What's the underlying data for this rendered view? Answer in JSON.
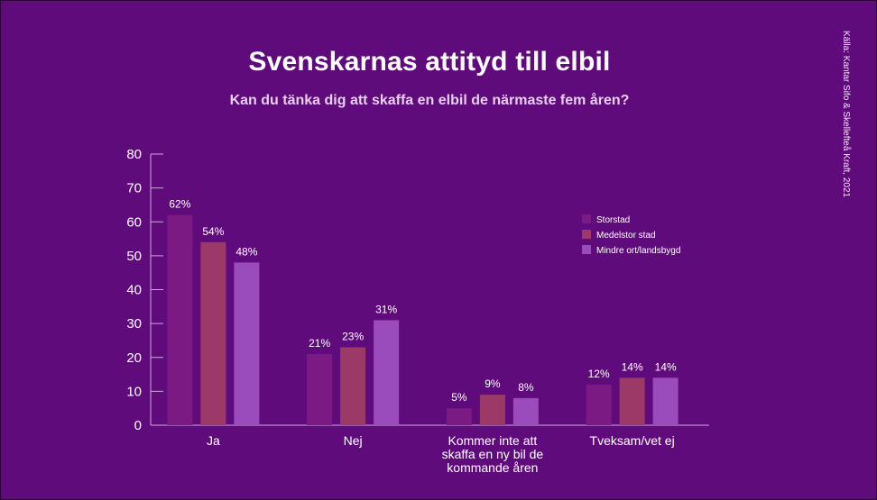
{
  "header": {
    "title": "Svenskarnas attityd till elbil",
    "subtitle": "Kan du tänka dig att skaffa en elbil de närmaste fem åren?",
    "source": "Källa: Kantar Sifo & Skellefteå Kraft, 2021"
  },
  "chart_data": {
    "type": "bar",
    "title": "Svenskarnas attityd till elbil",
    "subtitle": "Kan du tänka dig att skaffa en elbil de närmaste fem åren?",
    "categories": [
      [
        "Ja"
      ],
      [
        "Nej"
      ],
      [
        "Kommer inte att",
        "skaffa en ny bil de",
        "kommande åren"
      ],
      [
        "Tveksam/vet ej"
      ]
    ],
    "series": [
      {
        "name": "Storstad",
        "values": [
          62,
          21,
          5,
          12
        ],
        "labels": [
          "62%",
          "21%",
          "5%",
          "12%"
        ],
        "color": "#7b1a82"
      },
      {
        "name": "Medelstor stad",
        "values": [
          54,
          23,
          9,
          14
        ],
        "labels": [
          "54%",
          "23%",
          "9%",
          "14%"
        ],
        "color": "#9b3a66"
      },
      {
        "name": "Mindre ort/landsbygd",
        "values": [
          48,
          31,
          8,
          14
        ],
        "labels": [
          "48%",
          "31%",
          "8%",
          "14%"
        ],
        "color": "#9a4bbc"
      }
    ],
    "y_ticks": [
      "0",
      "10",
      "20",
      "30",
      "40",
      "50",
      "60",
      "70",
      "80"
    ],
    "ylim": [
      0,
      80
    ],
    "grid": false,
    "legend_position": "top-right",
    "axis_color": "#cfa9dc"
  }
}
